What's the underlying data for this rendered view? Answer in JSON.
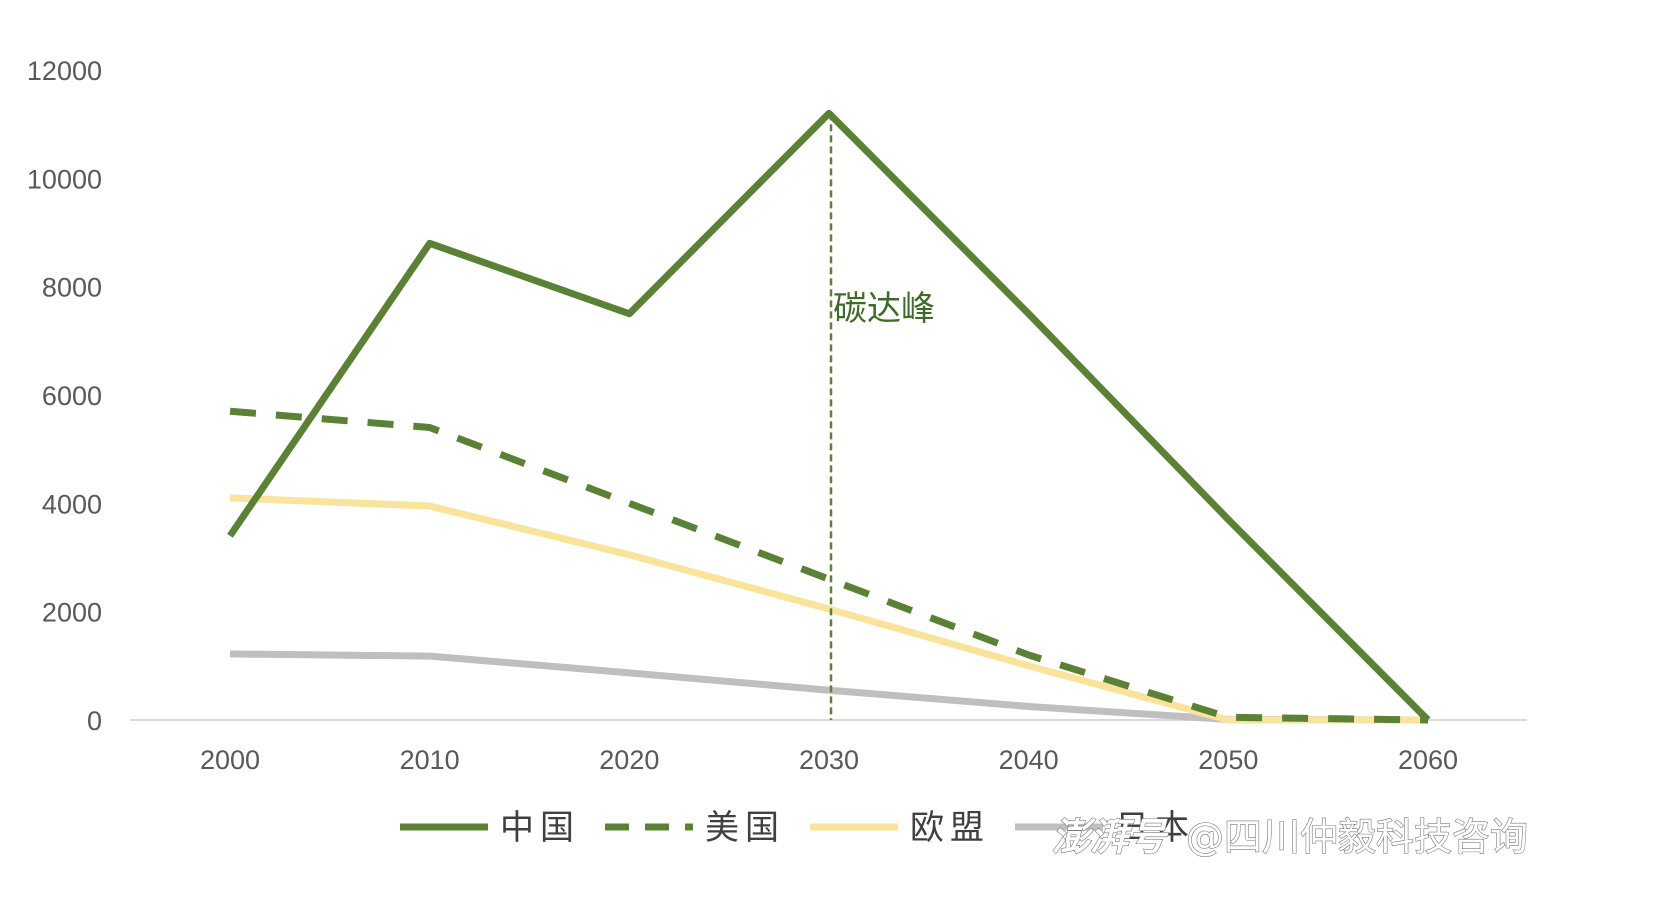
{
  "chart_data": {
    "type": "line",
    "categories": [
      "2000",
      "2010",
      "2020",
      "2030",
      "2040",
      "2050",
      "2060"
    ],
    "ylim": [
      0,
      12000
    ],
    "yticks": [
      0,
      2000,
      4000,
      6000,
      8000,
      10000,
      12000
    ],
    "grid": false,
    "legend_position": "bottom",
    "series": [
      {
        "name": "中国",
        "color": "#5b8136",
        "dash": "solid",
        "values": [
          3400,
          8800,
          7500,
          11200,
          7500,
          3700,
          0
        ]
      },
      {
        "name": "美国",
        "color": "#5b8136",
        "dash": "dashed",
        "values": [
          5700,
          5400,
          4000,
          2600,
          1200,
          50,
          0
        ]
      },
      {
        "name": "欧盟",
        "color": "#fae39b",
        "dash": "solid",
        "values": [
          4100,
          3950,
          3050,
          2050,
          1000,
          0,
          0
        ]
      },
      {
        "name": "日本",
        "color": "#bfbfbf",
        "dash": "solid",
        "values": [
          1220,
          1180,
          870,
          550,
          250,
          10,
          0
        ]
      }
    ],
    "annotations": [
      {
        "text": "碳达峰",
        "x": "2030",
        "style": "vertical-dashed-line",
        "color": "#5b8136"
      }
    ]
  },
  "watermark": {
    "logo_text": "澎湃号",
    "credit": "@四川仲毅科技咨询"
  }
}
